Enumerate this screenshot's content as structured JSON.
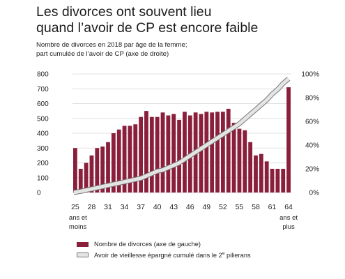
{
  "title_line1": "Les divorces ont souvent lieu",
  "title_line2": "quand l’avoir de CP est encore faible",
  "subtitle_line1": "Nombre de divorces en 2018 par âge de la femme;",
  "subtitle_line2": "part cumulée de l’avoir de CP (axe de droite)",
  "legend": {
    "bars": "Nombre de divorces (axe de gauche)",
    "line_before": "Avoir de vieillesse épargné cumulé dans le 2",
    "line_sup": "e",
    "line_after": " pilierans"
  },
  "colors": {
    "bar": "#8a1f3b",
    "line_fill": "#e4e4e4",
    "line_edge": "#777777"
  },
  "chart_data": {
    "type": "bar",
    "categories": [
      "25",
      "26",
      "27",
      "28",
      "29",
      "30",
      "31",
      "32",
      "33",
      "34",
      "35",
      "36",
      "37",
      "38",
      "39",
      "40",
      "41",
      "42",
      "43",
      "44",
      "45",
      "46",
      "47",
      "48",
      "49",
      "50",
      "51",
      "52",
      "53",
      "54",
      "55",
      "56",
      "57",
      "58",
      "59",
      "60",
      "61",
      "62",
      "63",
      "64"
    ],
    "x_tick_labels": [
      "25",
      "28",
      "31",
      "34",
      "37",
      "40",
      "43",
      "46",
      "49",
      "52",
      "55",
      "58",
      "61",
      "64"
    ],
    "first_label_sub": [
      "ans et",
      "moins"
    ],
    "last_label_sub": [
      "ans et",
      "plus"
    ],
    "series": [
      {
        "name": "Nombre de divorces (axe de gauche)",
        "axis": "left",
        "values": [
          300,
          160,
          200,
          250,
          300,
          310,
          340,
          400,
          425,
          450,
          450,
          460,
          510,
          550,
          510,
          510,
          540,
          520,
          530,
          490,
          545,
          520,
          540,
          530,
          545,
          540,
          545,
          545,
          565,
          470,
          430,
          420,
          340,
          250,
          260,
          210,
          160,
          160,
          160,
          710
        ]
      },
      {
        "name": "Avoir de vieillesse épargné cumulé dans le 2e pilierans",
        "axis": "right",
        "type": "line",
        "values": [
          0,
          1,
          2,
          3,
          4,
          5,
          6,
          7,
          8,
          9,
          10,
          11,
          12,
          14,
          16,
          18,
          19,
          21,
          23,
          25,
          28,
          31,
          34,
          37,
          40,
          43,
          46,
          49,
          52,
          55,
          58,
          62,
          66,
          70,
          74,
          78,
          83,
          87,
          92,
          96
        ]
      }
    ],
    "ylim_left": [
      0,
      800
    ],
    "yticks_left": [
      0,
      100,
      200,
      300,
      400,
      500,
      600,
      700,
      800
    ],
    "ylim_right": [
      0,
      100
    ],
    "yticks_right": [
      "0%",
      "20%",
      "40%",
      "60%",
      "80%",
      "100%"
    ],
    "grid": true
  }
}
